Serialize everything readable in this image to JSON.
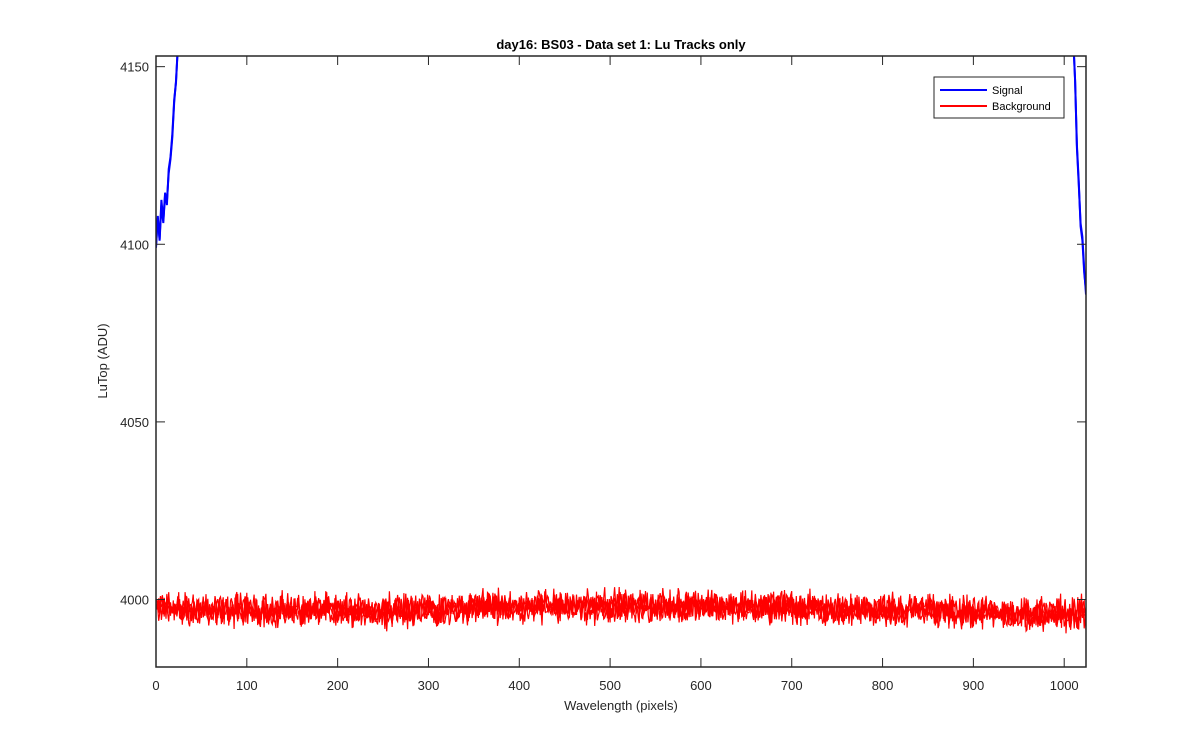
{
  "chart_data": {
    "type": "line",
    "title": "day16: BS03 - Data set 1: Lu Tracks only",
    "xlabel": "Wavelength (pixels)",
    "ylabel": "LuTop (ADU)",
    "xlim": [
      0,
      1024
    ],
    "ylim": [
      3981,
      4153
    ],
    "xticks": [
      0,
      100,
      200,
      300,
      400,
      500,
      600,
      700,
      800,
      900,
      1000
    ],
    "yticks": [
      4000,
      4050,
      4100,
      4150
    ],
    "grid": false,
    "legend": {
      "position": "top-right",
      "entries": [
        "Signal",
        "Background"
      ]
    },
    "series": [
      {
        "name": "Signal",
        "color": "#0000ff",
        "x": [
          0,
          2,
          4,
          6,
          8,
          10,
          12,
          14,
          16,
          18,
          20,
          22,
          24
        ],
        "y": [
          4099,
          4108,
          4101,
          4111,
          4106,
          4114,
          4112,
          4120,
          4124,
          4130,
          4140,
          4146,
          4155
        ]
      },
      {
        "name": "Signal",
        "color": "#0000ff",
        "x": [
          1010,
          1012,
          1014,
          1016,
          1018,
          1020,
          1022,
          1024
        ],
        "y": [
          4158,
          4146,
          4128,
          4118,
          4105,
          4101,
          4092,
          4087
        ]
      },
      {
        "name": "Background",
        "color": "#ff0000",
        "x": [
          0,
          50,
          100,
          150,
          200,
          250,
          300,
          350,
          400,
          450,
          500,
          550,
          600,
          650,
          700,
          750,
          800,
          850,
          900,
          950,
          1000,
          1024
        ],
        "y": [
          3998,
          3997,
          3997,
          3997,
          3997,
          3997,
          3997,
          3998,
          3998,
          3998,
          3998,
          3998,
          3998,
          3998,
          3998,
          3997,
          3997,
          3997,
          3996,
          3996,
          3996,
          3996
        ],
        "noise_amplitude": 3
      }
    ]
  }
}
